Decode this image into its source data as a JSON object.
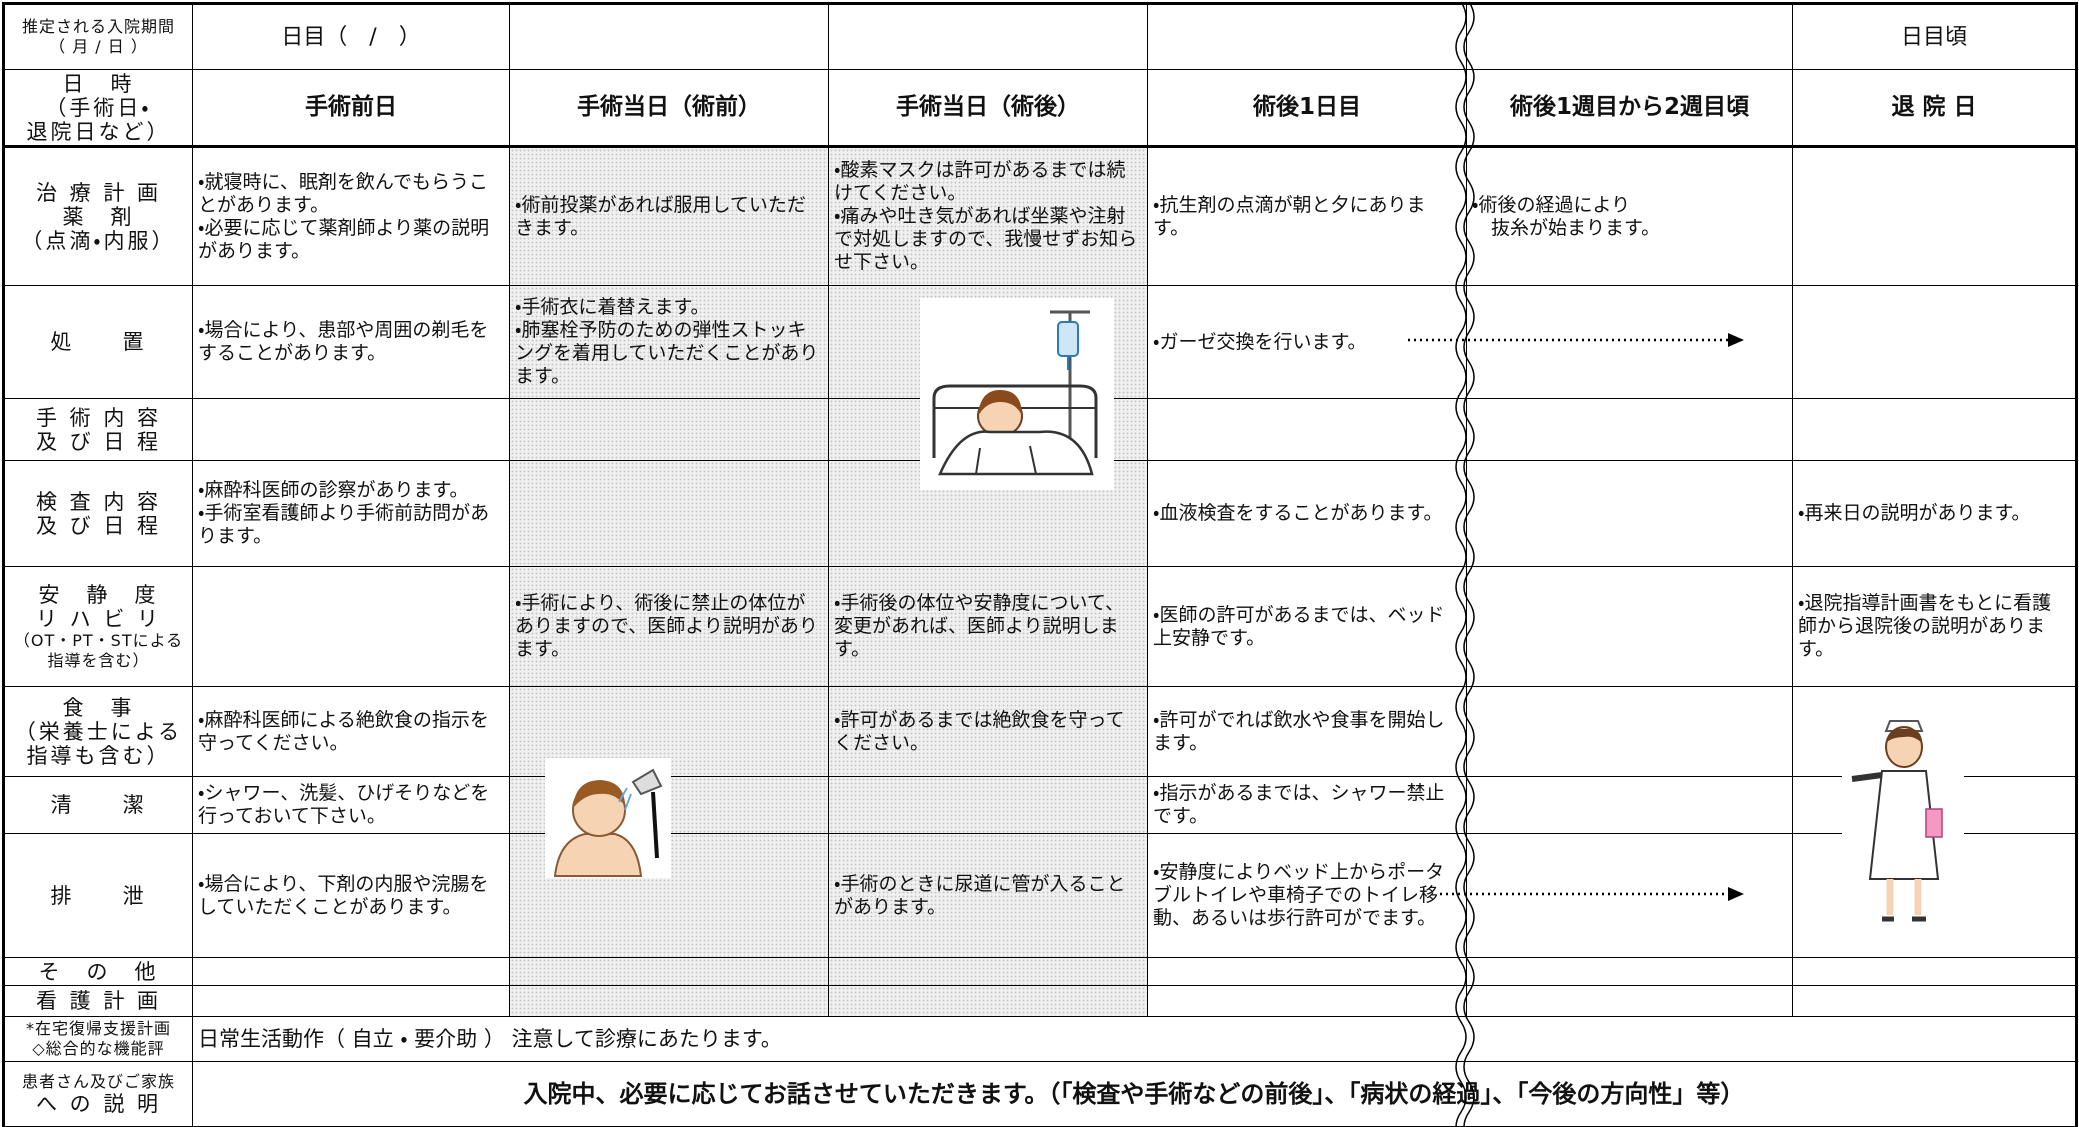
{
  "table": {
    "rows": [
      {
        "label": [
          "推定される入院期間",
          "（ 月 / 日 ）"
        ],
        "cells": [
          [
            "日目（　/　）"
          ],
          [],
          [],
          [],
          [],
          [
            "日目頃"
          ]
        ]
      },
      {
        "label": [
          "日　時",
          "（手術日・",
          "退院日など）"
        ],
        "cells": [
          [
            "手術前日"
          ],
          [
            "手術当日（術前）"
          ],
          [
            "手術当日（術後）"
          ],
          [
            "術後1日目"
          ],
          [
            "術後1週目から2週目頃"
          ],
          [
            "退 院 日"
          ]
        ]
      },
      {
        "label": [
          "治 療 計 画",
          "薬　剤",
          "（点滴・内服）"
        ],
        "cells": [
          [
            "・就寝時に、眠剤を飲んでもらうことがあります。",
            "・必要に応じて薬剤師より薬の説明があります。"
          ],
          [
            "・術前投薬があれば服用していただきます。"
          ],
          [
            "・酸素マスクは許可があるまでは続けてください。",
            "・痛みや吐き気があれば坐薬や注射で対処しますので、我慢せずお知らせ下さい。"
          ],
          [
            "・抗生剤の点滴が朝と夕にあります。"
          ],
          [
            "・術後の経過により",
            "抜糸が始まります。"
          ],
          []
        ]
      },
      {
        "label": [
          "処　　置"
        ],
        "cells": [
          [
            "・場合により、患部や周囲の剃毛をすることがあります。"
          ],
          [
            "・手術衣に着替えます。",
            "・肺塞栓予防のための弾性ストッキングを着用していただくことがあります。"
          ],
          [],
          [
            "・ガーゼ交換を行います。"
          ],
          [],
          []
        ]
      },
      {
        "label": [
          "手 術 内 容",
          "及 び 日 程"
        ],
        "cells": [
          [],
          [],
          [],
          [],
          [],
          []
        ]
      },
      {
        "label": [
          "検 査 内 容",
          "及 び 日 程"
        ],
        "cells": [
          [
            "・麻酔科医師の診察があります。",
            "・手術室看護師より手術前訪問があります。"
          ],
          [],
          [],
          [
            "・血液検査をすることがあります。"
          ],
          [],
          [
            "・再来日の説明があります。"
          ]
        ]
      },
      {
        "label": [
          "安　静　度",
          "リ ハ ビ リ",
          "（OT・PT・STによる指導を含む）"
        ],
        "cells": [
          [],
          [
            "・手術により、術後に禁止の体位がありますので、医師より説明があります。"
          ],
          [
            "・手術後の体位や安静度について、変更があれば、医師より説明します。"
          ],
          [
            "・医師の許可があるまでは、ベッド上安静です。"
          ],
          [],
          [
            "・退院指導計画書をもとに看護師から退院後の説明があります。"
          ]
        ]
      },
      {
        "label": [
          "食　事",
          "（栄養士による",
          "指導も含む）"
        ],
        "cells": [
          [
            "・麻酔科医師による絶飲食の指示を守ってください。"
          ],
          [],
          [
            "・許可があるまでは絶飲食を守ってください。"
          ],
          [
            "・許可がでれば飲水や食事を開始します。"
          ],
          [],
          []
        ]
      },
      {
        "label": [
          "清　　潔"
        ],
        "cells": [
          [
            "・シャワー、洗髪、ひげそりなどを行っておいて下さい。"
          ],
          [],
          [],
          [
            "・指示があるまでは、シャワー禁止です。"
          ],
          [],
          []
        ]
      },
      {
        "label": [
          "排　　泄"
        ],
        "cells": [
          [
            "・場合により、下剤の内服や浣腸をしていただくことがあります。"
          ],
          [],
          [
            "・手術のときに尿道に管が入ることがあります。"
          ],
          [
            "・安静度によりベッド上からポータブルトイレや車椅子でのトイレ移動、あるいは歩行許可がでます。"
          ],
          [],
          []
        ]
      },
      {
        "label": [
          "そ　の　他"
        ],
        "cells": [
          [],
          [],
          [],
          [],
          [],
          []
        ]
      },
      {
        "label": [
          "看 護 計 画"
        ],
        "cells": [
          [],
          [],
          [],
          [],
          [],
          []
        ]
      },
      {
        "label": [
          "*在宅復帰支援計画",
          "◇総合的な機能評"
        ],
        "note": "日常生活動作（ 自立 ・ 要介助 ） 注意して診療にあたります。"
      },
      {
        "label": [
          "患者さん及びご家族",
          "へ の 説 明"
        ],
        "note": "入院中、必要に応じてお話させていただきます。（「検査や手術などの前後」、「病状の経過」、「今後の方向性」等）"
      }
    ]
  }
}
